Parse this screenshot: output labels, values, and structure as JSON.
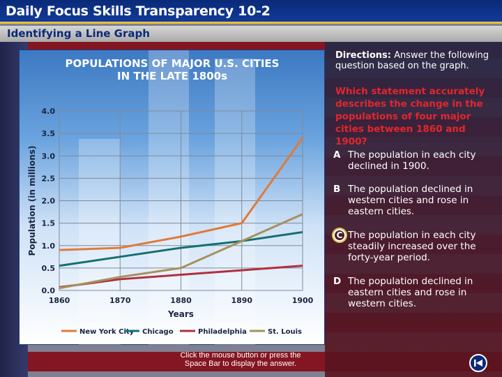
{
  "header": {
    "title": "Daily Focus Skills Transparency 10-2"
  },
  "subheader": {
    "title": "Identifying a Line Graph"
  },
  "directions": {
    "label": "Directions:",
    "text": "Answer the following question based on the graph."
  },
  "question": "Which statement accurately describes the change in the populations of four major cities between 1860 and 1900?",
  "options": [
    {
      "letter": "A",
      "text": "The population in each city declined in 1900."
    },
    {
      "letter": "B",
      "text": "The population declined in western cities and rose in eastern cities."
    },
    {
      "letter": "C",
      "text": "The population in each city steadily increased over the forty-year period."
    },
    {
      "letter": "D",
      "text": "The population declined in eastern cities and rose in western cities."
    }
  ],
  "footer": {
    "line1": "Click the mouse button or press the",
    "line2": "Space Bar to display the answer."
  },
  "colors": {
    "new_york": "#e07a3a",
    "chicago": "#14706e",
    "philadelphia": "#b0303e",
    "st_louis": "#a8905e"
  },
  "chart_data": {
    "type": "line",
    "title_line1": "POPULATIONS OF MAJOR U.S. CITIES",
    "title_line2": "IN THE LATE 1800s",
    "xlabel": "Years",
    "ylabel": "Population (in millions)",
    "x": [
      1860,
      1870,
      1880,
      1890,
      1900
    ],
    "x_ticks": [
      "1860",
      "1870",
      "1880",
      "1890",
      "1900"
    ],
    "ylim": [
      0,
      4.0
    ],
    "y_ticks": [
      "0.0",
      "0.5",
      "1.0",
      "1.5",
      "2.0",
      "2.5",
      "3.0",
      "3.5",
      "4.0"
    ],
    "y_tick_values": [
      0,
      0.5,
      1.0,
      1.5,
      2.0,
      2.5,
      3.0,
      3.5,
      4.0
    ],
    "grid": true,
    "legend_position": "bottom",
    "series": [
      {
        "name": "New York City",
        "color": "#e07a3a",
        "values": [
          0.9,
          0.95,
          1.2,
          1.5,
          3.4
        ]
      },
      {
        "name": "Chicago",
        "color": "#14706e",
        "values": [
          0.55,
          0.75,
          0.95,
          1.1,
          1.3
        ]
      },
      {
        "name": "Philadelphia",
        "color": "#b0303e",
        "values": [
          0.07,
          0.25,
          0.35,
          0.45,
          0.55
        ]
      },
      {
        "name": "St. Louis",
        "color": "#a8905e",
        "values": [
          0.05,
          0.3,
          0.5,
          1.1,
          1.7
        ]
      }
    ]
  }
}
